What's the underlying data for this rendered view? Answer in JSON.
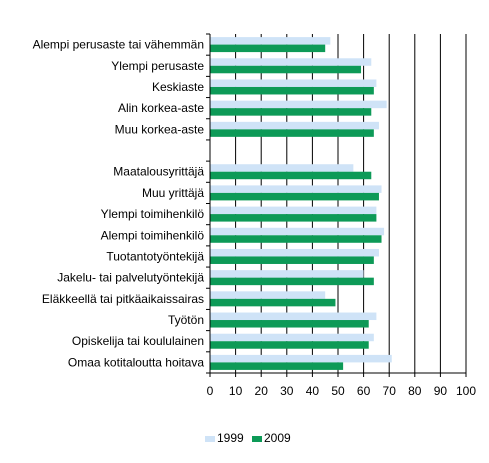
{
  "chart_data": {
    "type": "bar",
    "orientation": "horizontal",
    "categories": [
      "Alempi perusaste tai vähemmän",
      "Ylempi perusaste",
      "Keskiaste",
      "Alin korkea-aste",
      "Muu korkea-aste",
      "",
      "Maatalousyrittäjä",
      "Muu yrittäjä",
      "Ylempi toimihenkilö",
      "Alempi toimihenkilö",
      "Tuotantotyöntekijä",
      "Jakelu- tai palvelutyöntekijä",
      "Eläkkeellä tai pitkäaikaissairas",
      "Työtön",
      "Opiskelija tai koululainen",
      "Omaa kotitaloutta hoitava"
    ],
    "series": [
      {
        "name": "1999",
        "color": "#cfe3f7",
        "values": [
          47,
          63,
          65,
          69,
          66,
          null,
          56,
          67,
          65,
          68,
          66,
          60,
          45,
          65,
          64,
          71
        ]
      },
      {
        "name": "2009",
        "color": "#0d9a57",
        "values": [
          45,
          59,
          64,
          63,
          64,
          null,
          63,
          66,
          65,
          67,
          64,
          64,
          49,
          62,
          62,
          52
        ]
      }
    ],
    "xlim": [
      0,
      100
    ],
    "xticks": [
      "0",
      "10",
      "20",
      "30",
      "40",
      "50",
      "60",
      "70",
      "80",
      "90",
      "100"
    ],
    "grid": true,
    "legend": "bottom-center",
    "title": "",
    "xlabel": "",
    "ylabel": ""
  }
}
